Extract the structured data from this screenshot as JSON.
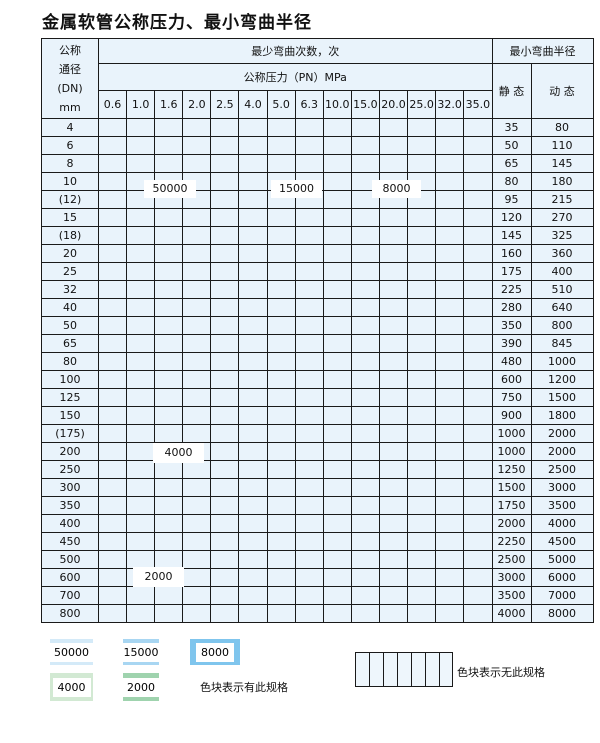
{
  "title": "金属软管公称压力、最小弯曲半径",
  "header": {
    "dn_label": [
      "公称",
      "通径",
      "(DN)",
      "mm"
    ],
    "cycles_label": "最少弯曲次数，次",
    "pressure_label": "公称压力（PN）MPa",
    "radius_label": "最小弯曲半径",
    "static_label": "静 态",
    "dynamic_label": "动 态",
    "pressures": [
      "0.6",
      "1.0",
      "1.6",
      "2.0",
      "2.5",
      "4.0",
      "5.0",
      "6.3",
      "10.0",
      "15.0",
      "20.0",
      "25.0",
      "32.0",
      "35.0"
    ]
  },
  "categories": {
    "A": {
      "value": "50000",
      "color": "#d4eaf8"
    },
    "B": {
      "value": "15000",
      "color": "#a8d6f2"
    },
    "C": {
      "value": "8000",
      "color": "#7fc5ed"
    },
    "D": {
      "value": "4000",
      "color": "#d2e9d3"
    },
    "E": {
      "value": "2000",
      "color": "#9fd3ae"
    },
    "X": {
      "value": "",
      "color": "hatched"
    }
  },
  "rows": [
    {
      "dn": "4",
      "static": "35",
      "dynamic": "80",
      "cells": "AAAAABBBBCCCCC"
    },
    {
      "dn": "6",
      "static": "50",
      "dynamic": "110",
      "cells": "AAAAABBBBCCCXX"
    },
    {
      "dn": "8",
      "static": "65",
      "dynamic": "145",
      "cells": "AAAAABBBBCCCXX"
    },
    {
      "dn": "10",
      "static": "80",
      "dynamic": "180",
      "cells": "AAAAABBBBCCCXX"
    },
    {
      "dn": "(12)",
      "static": "95",
      "dynamic": "215",
      "cells": "AAAAABBBBCCCXX"
    },
    {
      "dn": "15",
      "static": "120",
      "dynamic": "270",
      "cells": "AAAAABBBCCCCXX"
    },
    {
      "dn": "(18)",
      "static": "145",
      "dynamic": "325",
      "cells": "AAAAABBBCCCXXX"
    },
    {
      "dn": "20",
      "static": "160",
      "dynamic": "360",
      "cells": "AAAAABBBCCCXXX"
    },
    {
      "dn": "25",
      "static": "175",
      "dynamic": "400",
      "cells": "AAAAABBBCCXXXX"
    },
    {
      "dn": "32",
      "static": "225",
      "dynamic": "510",
      "cells": "AAAAABCCCXXXXX"
    },
    {
      "dn": "40",
      "static": "280",
      "dynamic": "640",
      "cells": "AAAAABCCCXXXXX"
    },
    {
      "dn": "50",
      "static": "350",
      "dynamic": "800",
      "cells": "AAAAABCCXXXXXX"
    },
    {
      "dn": "65",
      "static": "390",
      "dynamic": "845",
      "cells": "AABBBBCCXXXXXX"
    },
    {
      "dn": "80",
      "static": "480",
      "dynamic": "1000",
      "cells": "AABBBCCXXXXXXX"
    },
    {
      "dn": "100",
      "static": "600",
      "dynamic": "1200",
      "cells": "DDDDDDXXXXXXXX"
    },
    {
      "dn": "125",
      "static": "750",
      "dynamic": "1500",
      "cells": "DDDDDDXXXXXXXX"
    },
    {
      "dn": "150",
      "static": "900",
      "dynamic": "1800",
      "cells": "DDDDDDXXXXXXXX"
    },
    {
      "dn": "(175)",
      "static": "1000",
      "dynamic": "2000",
      "cells": "DDDDDDXXXXXXXX"
    },
    {
      "dn": "200",
      "static": "1000",
      "dynamic": "2000",
      "cells": "DDDDDDXXXXXXXX"
    },
    {
      "dn": "250",
      "static": "1250",
      "dynamic": "2500",
      "cells": "DDDDDDXXXXXXXX"
    },
    {
      "dn": "300",
      "static": "1500",
      "dynamic": "3000",
      "cells": "DDDDDDXXXXXXXX"
    },
    {
      "dn": "350",
      "static": "1750",
      "dynamic": "3500",
      "cells": "EEEEEXXXXXXXXX"
    },
    {
      "dn": "400",
      "static": "2000",
      "dynamic": "4000",
      "cells": "EEEEEXXXXXXXXX"
    },
    {
      "dn": "450",
      "static": "2250",
      "dynamic": "4500",
      "cells": "EEEEEXXXXXXXXX"
    },
    {
      "dn": "500",
      "static": "2500",
      "dynamic": "5000",
      "cells": "EEEEEXXXXXXXXX"
    },
    {
      "dn": "600",
      "static": "3000",
      "dynamic": "6000",
      "cells": "EEEEXXXXXXXXXX"
    },
    {
      "dn": "700",
      "static": "3500",
      "dynamic": "7000",
      "cells": "EEEXXXXXXXXXXX"
    },
    {
      "dn": "800",
      "static": "4000",
      "dynamic": "8000",
      "cells": "EEEXXXXXXXXXXX"
    }
  ],
  "region_labels": {
    "a": "50000",
    "b": "15000",
    "c": "8000",
    "d": "4000",
    "e": "2000"
  },
  "legend": {
    "items": [
      "50000",
      "15000",
      "8000",
      "4000",
      "2000"
    ],
    "has_spec_text": "色块表示有此规格",
    "no_spec_text": "色块表示无此规格"
  }
}
